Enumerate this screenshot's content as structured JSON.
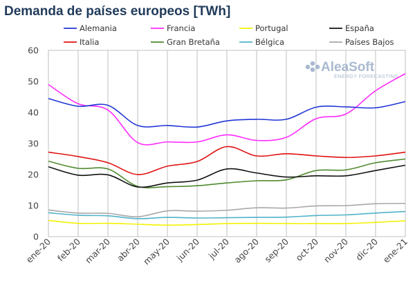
{
  "chart_data": {
    "type": "line",
    "title": "Demanda de países europeos [TWh]",
    "categories": [
      "ene-20",
      "feb-20",
      "mar-20",
      "abr-20",
      "may-20",
      "jun-20",
      "jul-20",
      "ago-20",
      "sep-20",
      "oct-20",
      "nov-20",
      "dic-20",
      "ene-21"
    ],
    "ylim": [
      0,
      60
    ],
    "yticks": [
      0,
      10,
      20,
      30,
      40,
      50,
      60
    ],
    "grid": {
      "vertical": true,
      "horizontal": false
    },
    "legend_position": "top",
    "series": [
      {
        "name": "Alemania",
        "color": "#1f35d6",
        "values": [
          44.5,
          42.0,
          42.3,
          35.8,
          35.8,
          35.3,
          37.3,
          37.8,
          37.8,
          41.7,
          41.8,
          41.5,
          43.5
        ]
      },
      {
        "name": "Francia",
        "color": "#ff2aff",
        "values": [
          49.0,
          42.8,
          40.8,
          30.3,
          30.5,
          30.5,
          32.8,
          31.0,
          32.0,
          38.0,
          39.5,
          47.0,
          52.5
        ]
      },
      {
        "name": "Portugal",
        "color": "#f2f200",
        "values": [
          5.2,
          4.3,
          4.3,
          4.0,
          3.7,
          3.9,
          4.2,
          4.3,
          4.2,
          4.2,
          4.2,
          4.6,
          5.1
        ]
      },
      {
        "name": "España",
        "color": "#111111",
        "values": [
          22.5,
          19.8,
          19.9,
          16.0,
          17.3,
          18.2,
          21.8,
          20.5,
          19.2,
          19.6,
          19.6,
          21.3,
          23.0
        ]
      },
      {
        "name": "Italia",
        "color": "#e01010",
        "values": [
          27.2,
          25.8,
          23.8,
          20.0,
          22.7,
          24.2,
          29.0,
          26.0,
          26.7,
          26.0,
          25.5,
          26.0,
          27.2
        ]
      },
      {
        "name": "Gran Bretaña",
        "color": "#4e8a2e",
        "values": [
          24.3,
          22.0,
          21.8,
          16.2,
          16.1,
          16.4,
          17.3,
          18.0,
          18.3,
          21.3,
          21.5,
          23.8,
          25.0
        ]
      },
      {
        "name": "Bélgica",
        "color": "#4fb2c9",
        "values": [
          7.7,
          6.9,
          6.7,
          5.8,
          6.2,
          6.0,
          6.1,
          6.2,
          6.3,
          6.8,
          7.0,
          7.6,
          8.1
        ]
      },
      {
        "name": "Países Bajos",
        "color": "#a8a8a8",
        "values": [
          8.6,
          7.6,
          7.5,
          6.4,
          8.3,
          8.2,
          8.5,
          9.3,
          9.2,
          9.9,
          10.0,
          10.6,
          10.7
        ]
      }
    ]
  },
  "watermark": {
    "brand": "AleaSoft",
    "tagline": "ENERGY FORECASTING"
  }
}
